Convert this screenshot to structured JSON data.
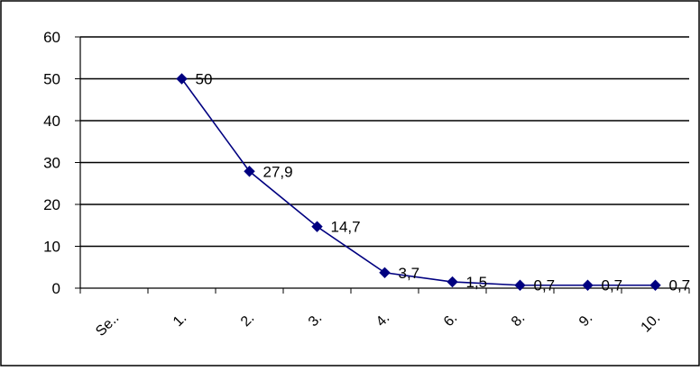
{
  "chart_data": {
    "type": "line",
    "categories": [
      "Se..",
      "1.",
      "2.",
      "3.",
      "4.",
      "6.",
      "8.",
      "9.",
      "10."
    ],
    "series": [
      {
        "values": [
          null,
          50,
          27.9,
          14.7,
          3.7,
          1.5,
          0.7,
          0.7,
          0.7
        ],
        "labels": [
          "",
          "50",
          "27,9",
          "14,7",
          "3,7",
          "1,5",
          "0,7",
          "0,7",
          "0,7"
        ]
      }
    ],
    "y_ticks": [
      "0",
      "10",
      "20",
      "30",
      "40",
      "50",
      "60"
    ],
    "ylim": [
      0,
      60
    ],
    "grid": true,
    "legend": "none",
    "title": "",
    "xlabel": "",
    "ylabel": "",
    "colors": {
      "line": "#000080",
      "marker": "#000080",
      "grid": "#000000",
      "frame": "#000000"
    }
  }
}
